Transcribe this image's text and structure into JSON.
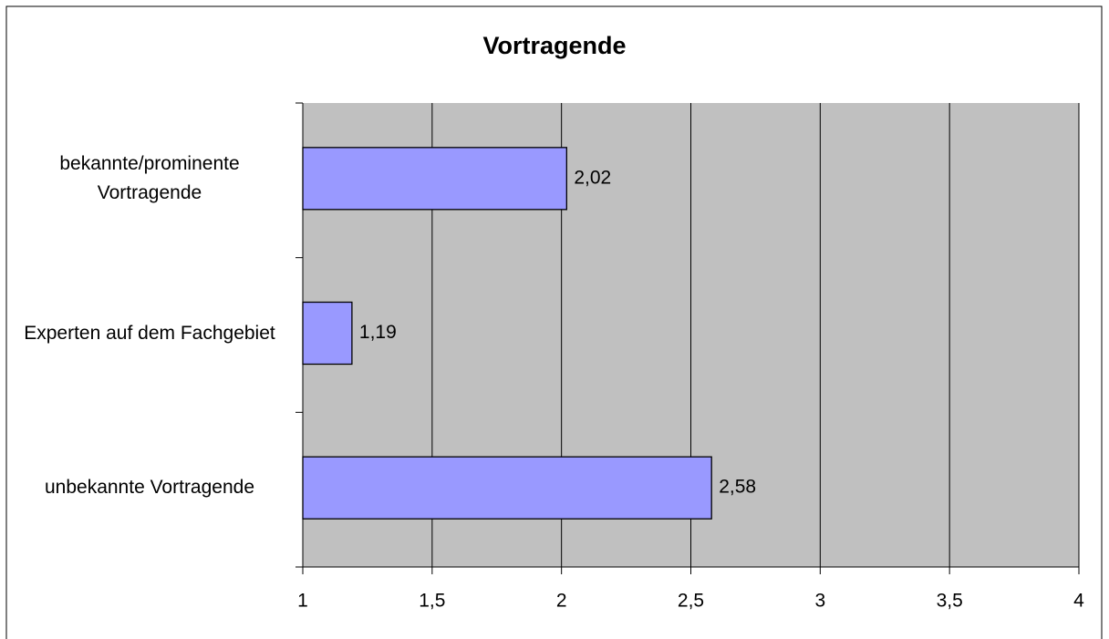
{
  "chart_data": {
    "type": "barh",
    "title": "Vortragende",
    "categories": [
      "bekannte/prominente Vortragende",
      "Experten auf dem Fachgebiet",
      "unbekannte Vortragende"
    ],
    "values": [
      2.02,
      1.19,
      2.58
    ],
    "value_labels": [
      "2,02",
      "1,19",
      "2,58"
    ],
    "color": "#9999ff",
    "plot_background": "#c0c0c0",
    "xlim": [
      1,
      4
    ],
    "xticks": [
      1,
      {
        "value": 1.5,
        "label": "1,5"
      },
      2,
      {
        "value": 2.5,
        "label": "2,5"
      },
      3,
      {
        "value": 3.5,
        "label": "3,5"
      },
      4
    ],
    "grid": true
  }
}
